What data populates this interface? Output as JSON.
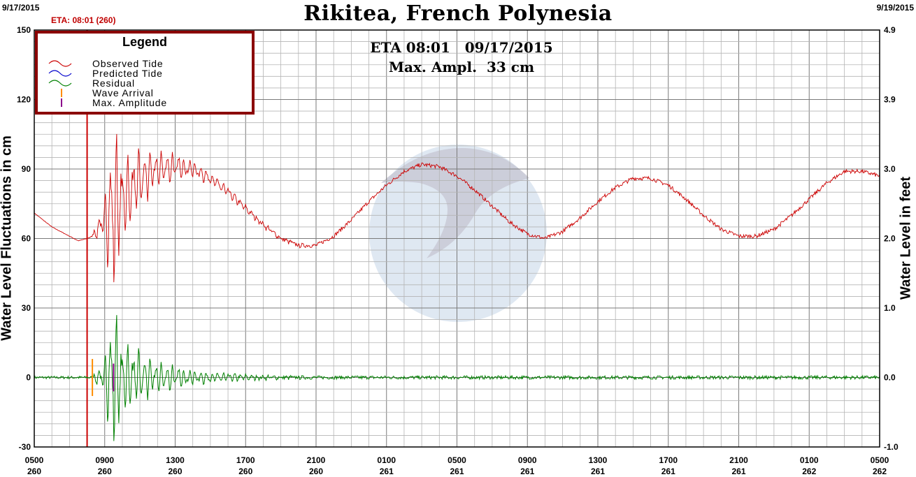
{
  "header": {
    "start_date": "9/17/2015",
    "end_date": "9/19/2015",
    "title": "Rikitea, French Polynesia",
    "eta_top": "ETA: 08:01 (260)"
  },
  "annotation": {
    "line1": "ETA 08:01   09/17/2015",
    "line2": "Max. Ampl.  33 cm"
  },
  "legend": {
    "title": "Legend",
    "items": [
      {
        "label": "Observed Tide",
        "color": "#cc0000",
        "symbol": "wave"
      },
      {
        "label": "Predicted Tide",
        "color": "#0000cc",
        "symbol": "wave"
      },
      {
        "label": "Residual",
        "color": "#008000",
        "symbol": "wave"
      },
      {
        "label": "Wave Arrival",
        "color": "#ff8c00",
        "symbol": "tick"
      },
      {
        "label": "Max. Amplitude",
        "color": "#8b008b",
        "symbol": "tick"
      }
    ]
  },
  "colors": {
    "observed": "#cc0000",
    "residual": "#008000",
    "eta_line": "#cc0000",
    "wave_arrival": "#ff8c00",
    "max_amplitude": "#8b008b",
    "grid": "#9a9a9a",
    "legend_border": "#8b0000"
  },
  "chart_data": {
    "type": "line",
    "title": "Rikitea, French Polynesia",
    "ylabel": "Water Level Fluctuations in cm",
    "ylabel_right": "Water Level in feet",
    "ylim": [
      -30,
      150
    ],
    "ylim_right": [
      -1.0,
      4.9
    ],
    "xlim": [
      0,
      48
    ],
    "x_unit": "hours since 0500 on day 260",
    "y_ticks": [
      "150",
      "120",
      "90",
      "60",
      "30",
      "0",
      "-30"
    ],
    "y_ticks_right": [
      "4.9",
      "3.9",
      "3.0",
      "2.0",
      "1.0",
      "0.0",
      "-1.0"
    ],
    "x_ticks": [
      {
        "time": "0500",
        "day": "260"
      },
      {
        "time": "0900",
        "day": "260"
      },
      {
        "time": "1300",
        "day": "260"
      },
      {
        "time": "1700",
        "day": "260"
      },
      {
        "time": "2100",
        "day": "260"
      },
      {
        "time": "0100",
        "day": "261"
      },
      {
        "time": "0500",
        "day": "261"
      },
      {
        "time": "0900",
        "day": "261"
      },
      {
        "time": "1300",
        "day": "261"
      },
      {
        "time": "1700",
        "day": "261"
      },
      {
        "time": "2100",
        "day": "261"
      },
      {
        "time": "0100",
        "day": "262"
      },
      {
        "time": "0500",
        "day": "262"
      }
    ],
    "grid": true,
    "legend_position": "top-left",
    "eta_x": 3.0,
    "wave_arrival_x": 3.3,
    "max_amplitude_x": 4.5,
    "series": [
      {
        "name": "Observed Tide",
        "color": "#cc0000",
        "x": [
          0,
          1,
          2,
          2.5,
          3,
          3.3,
          4,
          5,
          6,
          7,
          8,
          9,
          10,
          11,
          12,
          13,
          14,
          15,
          16,
          17,
          18,
          19,
          20,
          21,
          22,
          23,
          24,
          25,
          26,
          27,
          28,
          29,
          30,
          31,
          32,
          33,
          34,
          35,
          36,
          37,
          38,
          39,
          40,
          41,
          42,
          43,
          44,
          45,
          46,
          47,
          48
        ],
        "y": [
          71,
          65,
          61,
          59,
          60,
          61,
          68,
          77,
          85,
          90,
          91,
          90,
          86,
          80,
          73,
          66,
          60,
          57,
          57,
          61,
          68,
          76,
          83,
          89,
          92,
          91,
          87,
          81,
          74,
          67,
          62,
          60,
          63,
          69,
          76,
          82,
          86,
          86,
          83,
          77,
          70,
          64,
          61,
          61,
          64,
          70,
          77,
          84,
          89,
          89,
          87
        ]
      },
      {
        "name": "Residual",
        "color": "#008000",
        "x": [
          0,
          3,
          3.3,
          4,
          4.5,
          5,
          6,
          7,
          8,
          9,
          10,
          12,
          16,
          20,
          24,
          28,
          32,
          36,
          40,
          44,
          48
        ],
        "y": [
          0,
          0,
          0.5,
          8,
          33,
          14,
          11,
          7,
          5,
          3,
          2,
          1,
          0,
          0,
          0,
          0,
          0,
          0,
          0,
          0,
          0
        ]
      }
    ]
  }
}
